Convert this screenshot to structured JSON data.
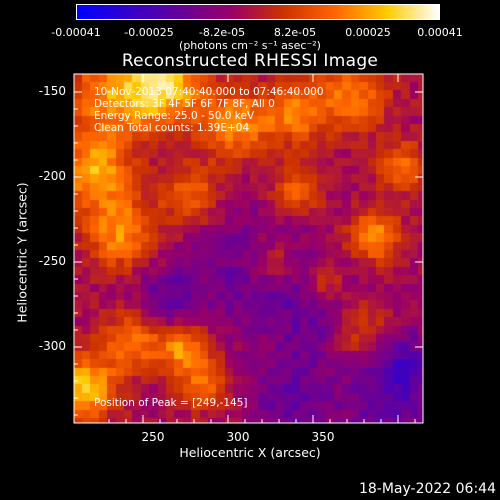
{
  "colorbar": {
    "tick_labels": [
      "-0.00041",
      "-0.00025",
      "-8.2e-05",
      "8.2e-05",
      "0.00025",
      "0.00041"
    ],
    "units": "(photons cm⁻² s⁻¹ asec⁻²)",
    "colors": [
      "#0000ff",
      "#3300cc",
      "#660099",
      "#990066",
      "#cc3300",
      "#ff6600",
      "#ffcc00",
      "#ffffff"
    ]
  },
  "plot": {
    "title": "Reconstructed RHESSI Image",
    "overlay_lines": [
      "10-Nov-2013 07:40:40.000 to 07:46:40.000",
      "Detectors: 3F 4F 5F 6F 7F 8F, All 0",
      "Energy Range: 25.0 - 50.0 keV",
      "Clean    Total counts: 1.39E+04"
    ],
    "peak_label": "Position of Peak = [249,-145]",
    "x_ticks": [
      "250",
      "300",
      "350"
    ],
    "y_ticks": [
      "-150",
      "-200",
      "-250",
      "-300"
    ],
    "xlabel": "Heliocentric X (arcsec)",
    "ylabel": "Heliocentric Y (arcsec)"
  },
  "timestamp": "18-May-2022 06:44"
}
